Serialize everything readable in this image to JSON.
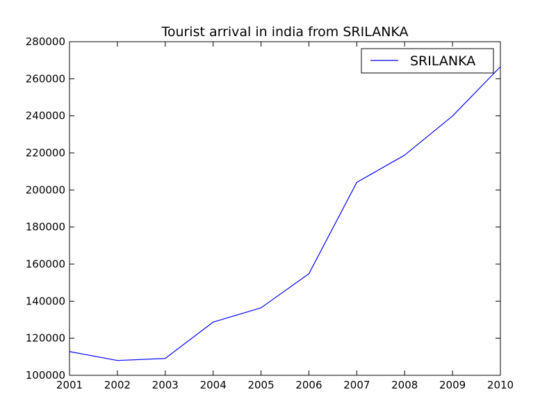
{
  "chart_data": {
    "type": "line",
    "title": "Tourist arrival in india from  SRILANKA",
    "xlabel": "",
    "ylabel": "",
    "x": [
      2001,
      2002,
      2003,
      2004,
      2005,
      2006,
      2007,
      2008,
      2009,
      2010
    ],
    "xlim": [
      2001,
      2010
    ],
    "ylim": [
      100000,
      280000
    ],
    "x_ticks": [
      "2001",
      "2002",
      "2003",
      "2004",
      "2005",
      "2006",
      "2007",
      "2008",
      "2009",
      "2010"
    ],
    "y_ticks": [
      "100000",
      "120000",
      "140000",
      "160000",
      "180000",
      "200000",
      "220000",
      "240000",
      "260000",
      "280000"
    ],
    "grid": false,
    "legend_position": "top-right",
    "series": [
      {
        "name": "SRILANKA",
        "color": "#0000ff",
        "values": [
          112800,
          108000,
          109100,
          128700,
          136400,
          154800,
          204100,
          218800,
          239900,
          266500
        ]
      }
    ]
  }
}
